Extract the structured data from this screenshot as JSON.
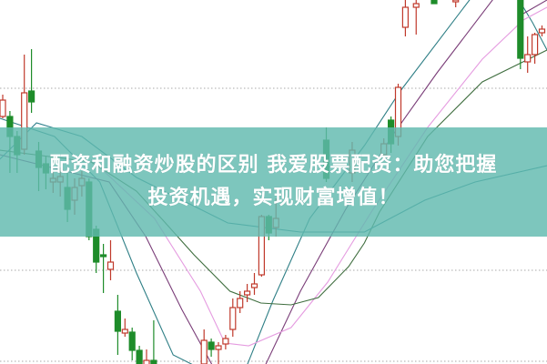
{
  "banner": {
    "line1": "配资和融资炒股的区别 我爱股票配资：助您把握",
    "line2": "投资机遇，实现财富增值！",
    "color": "#60baaf"
  },
  "chart_data": {
    "type": "candlestick",
    "title": "",
    "xlabel": "",
    "ylabel": "",
    "grid": true,
    "grid_style": "dotted horizontal",
    "colors": {
      "up": "#c0392b",
      "down": "#1e8c2a",
      "grid": "#aaaaaa"
    },
    "candles": [
      {
        "t": 0,
        "o": 68,
        "h": 74,
        "l": 67.5,
        "c": 72.5
      },
      {
        "t": 1,
        "o": 68,
        "h": 69.5,
        "l": 52.5,
        "c": 62.5
      },
      {
        "t": 2,
        "o": 62.5,
        "h": 64,
        "l": 52.5,
        "c": 57.5
      },
      {
        "t": 3,
        "o": 59,
        "h": 85,
        "l": 57.5,
        "c": 74.5
      },
      {
        "t": 4,
        "o": 75,
        "h": 86.5,
        "l": 69,
        "c": 72
      },
      {
        "t": 5,
        "o": 58.5,
        "h": 61,
        "l": 47.5,
        "c": 54
      },
      {
        "t": 6,
        "o": 55,
        "h": 57,
        "l": 48,
        "c": 52.5
      },
      {
        "t": 7,
        "o": 50,
        "h": 53,
        "l": 47,
        "c": 51
      },
      {
        "t": 8,
        "o": 50,
        "h": 54,
        "l": 46,
        "c": 51.5
      },
      {
        "t": 9,
        "o": 48.5,
        "h": 52.5,
        "l": 39,
        "c": 42.5
      },
      {
        "t": 10,
        "o": 45,
        "h": 51,
        "l": 41,
        "c": 48.5
      },
      {
        "t": 11,
        "o": 49,
        "h": 53,
        "l": 46,
        "c": 51
      },
      {
        "t": 12,
        "o": 50,
        "h": 51,
        "l": 34,
        "c": 35
      },
      {
        "t": 13,
        "o": 37,
        "h": 38,
        "l": 25,
        "c": 28
      },
      {
        "t": 14,
        "o": 30,
        "h": 33,
        "l": 19.5,
        "c": 29.5
      },
      {
        "t": 15,
        "o": 26,
        "h": 34,
        "l": 23,
        "c": 28
      },
      {
        "t": 16,
        "o": 14.5,
        "h": 19,
        "l": 2.5,
        "c": 9
      },
      {
        "t": 17,
        "o": 8.5,
        "h": 12.5,
        "l": 7.5,
        "c": 9.5
      },
      {
        "t": 18,
        "o": 8.75,
        "h": 10,
        "l": 1,
        "c": 3.75
      },
      {
        "t": 19,
        "o": 3.75,
        "h": 5,
        "l": -2,
        "c": 0
      },
      {
        "t": 20,
        "o": -1,
        "h": 4,
        "l": -3,
        "c": 1
      },
      {
        "t": 21,
        "o": 1,
        "h": 12,
        "l": -3,
        "c": -1
      },
      {
        "t": 28,
        "o": 0,
        "h": 9.5,
        "l": -1,
        "c": 6.5
      },
      {
        "t": 29,
        "o": 6,
        "h": 7,
        "l": 2,
        "c": 4
      },
      {
        "t": 30,
        "o": 4,
        "h": 6,
        "l": 0,
        "c": 5
      },
      {
        "t": 31,
        "o": 5.5,
        "h": 8,
        "l": 4,
        "c": 7
      },
      {
        "t": 32,
        "o": 9.5,
        "h": 18,
        "l": 7.5,
        "c": 15.5
      },
      {
        "t": 33,
        "o": 15.5,
        "h": 20,
        "l": 14,
        "c": 18
      },
      {
        "t": 34,
        "o": 19,
        "h": 22,
        "l": 17,
        "c": 20
      },
      {
        "t": 35,
        "o": 21,
        "h": 25,
        "l": 19,
        "c": 22
      },
      {
        "t": 36,
        "o": 24.5,
        "h": 41,
        "l": 24,
        "c": 40.5
      },
      {
        "t": 37,
        "o": 40.5,
        "h": 41,
        "l": 34,
        "c": 36
      },
      {
        "t": 38,
        "o": 37.5,
        "h": 45.5,
        "l": 35,
        "c": 40
      },
      {
        "t": 45,
        "o": 61.5,
        "h": 65,
        "l": 50,
        "c": 51
      },
      {
        "t": 48.6,
        "o": 52.5,
        "h": 61,
        "l": 50,
        "c": 58.75
      },
      {
        "t": 53,
        "o": 57.5,
        "h": 62,
        "l": 56,
        "c": 60.5
      },
      {
        "t": 54,
        "o": 67,
        "h": 68,
        "l": 58,
        "c": 60.5
      },
      {
        "t": 55,
        "o": 62.5,
        "h": 77,
        "l": 60,
        "c": 76
      },
      {
        "t": 56,
        "o": 92.5,
        "h": 100,
        "l": 90,
        "c": 98
      },
      {
        "t": 57.5,
        "o": 98,
        "h": 100,
        "l": 90.5,
        "c": 99
      },
      {
        "t": 60,
        "o": 100,
        "h": 101,
        "l": 99,
        "c": 99
      },
      {
        "t": 63,
        "o": 99.5,
        "h": 101,
        "l": 98,
        "c": 100
      },
      {
        "t": 72,
        "o": 100,
        "h": 101,
        "l": 81,
        "c": 84
      },
      {
        "t": 73,
        "o": 83,
        "h": 90,
        "l": 80,
        "c": 85
      },
      {
        "t": 74,
        "o": 85,
        "h": 91,
        "l": 82.5,
        "c": 90.5
      },
      {
        "t": 75,
        "o": 91,
        "h": 93,
        "l": 90,
        "c": 92
      }
    ],
    "ma_lines": [
      {
        "color": "#2f7f86",
        "points": [
          [
            -0.4,
            67.5
          ],
          [
            7.2,
            62.5
          ],
          [
            13.5,
            50
          ],
          [
            18.6,
            25
          ],
          [
            23.7,
            2.5
          ],
          [
            27.5,
            -1.25
          ],
          [
            33.8,
            -1.25
          ],
          [
            37.6,
            17.5
          ],
          [
            42.7,
            40
          ],
          [
            50.3,
            60
          ],
          [
            55.3,
            75
          ],
          [
            65.4,
            101.25
          ]
        ]
      },
      {
        "color": "#2f7f86",
        "points": [
          [
            71.8,
            100
          ],
          [
            73.7,
            93.75
          ],
          [
            75.7,
            86.25
          ]
        ]
      },
      {
        "color": "#7a3d78",
        "points": [
          [
            -0.4,
            57.5
          ],
          [
            14.8,
            50
          ],
          [
            19.9,
            35
          ],
          [
            24.9,
            15
          ],
          [
            29.4,
            -1.25
          ],
          [
            36.3,
            -1.25
          ],
          [
            41.4,
            20
          ],
          [
            47.7,
            42.5
          ],
          [
            54.1,
            62.5
          ],
          [
            60.4,
            80
          ],
          [
            68.6,
            101.25
          ]
        ]
      },
      {
        "color": "#7a3d78",
        "points": [
          [
            72.4,
            96.25
          ],
          [
            75.7,
            100
          ]
        ]
      },
      {
        "color": "#e59be0",
        "points": [
          [
            12.3,
            56.25
          ],
          [
            21.1,
            40
          ],
          [
            27.5,
            20
          ],
          [
            30.9,
            5.75
          ],
          [
            34.2,
            5
          ],
          [
            40.1,
            10
          ],
          [
            45.2,
            22.5
          ],
          [
            51.5,
            42.5
          ],
          [
            59.1,
            65
          ],
          [
            66.7,
            83.75
          ],
          [
            72.4,
            94.5
          ],
          [
            75.7,
            98
          ]
        ]
      },
      {
        "color": "#3f6e3f",
        "points": [
          [
            -0.4,
            58.75
          ],
          [
            12.3,
            55.5
          ],
          [
            18.6,
            47.5
          ],
          [
            22.4,
            39.25
          ],
          [
            26.6,
            30
          ],
          [
            31.6,
            20
          ],
          [
            35.9,
            16.75
          ],
          [
            40.1,
            16.25
          ],
          [
            43.9,
            18.25
          ],
          [
            48.1,
            26.75
          ],
          [
            50.3,
            33.25
          ],
          [
            52.4,
            41.75
          ],
          [
            59.1,
            62.5
          ],
          [
            66.7,
            77.5
          ],
          [
            75.7,
            86.25
          ]
        ]
      },
      {
        "color": "#2a7e8a",
        "points": [
          [
            -0.4,
            56.25
          ],
          [
            4.7,
            66.25
          ],
          [
            11,
            62.5
          ],
          [
            18.6,
            51.25
          ],
          [
            31.3,
            38.75
          ],
          [
            41.4,
            36.25
          ],
          [
            50.3,
            36.25
          ],
          [
            58.7,
            45
          ],
          [
            65.7,
            50
          ],
          [
            75.7,
            54.5
          ]
        ]
      }
    ],
    "grid_levels": [
      75.75,
      25.75,
      0.75
    ]
  }
}
